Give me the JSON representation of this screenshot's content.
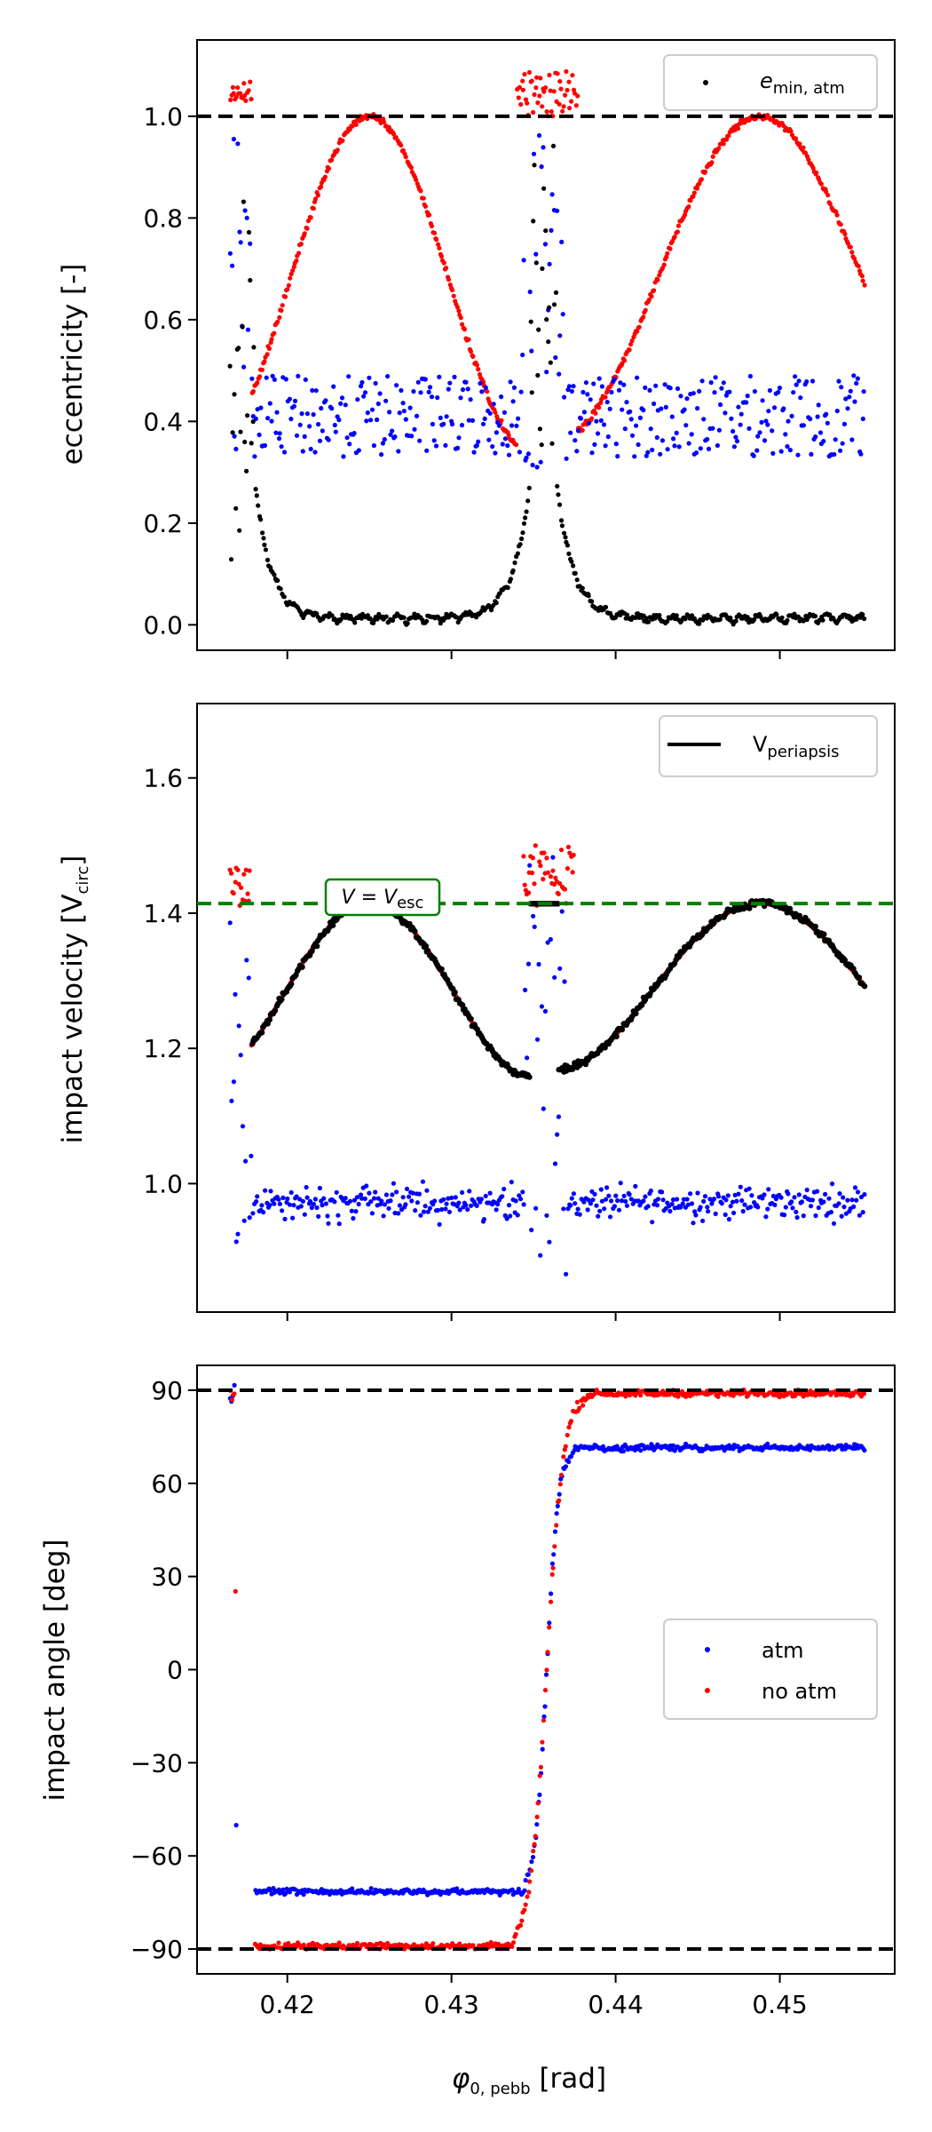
{
  "chart_data": [
    {
      "type": "scatter",
      "panel": "eccentricity",
      "ylabel": "eccentricity [-]",
      "xlim": [
        0.4145,
        0.457
      ],
      "ylim": [
        -0.05,
        1.15
      ],
      "yticks": [
        0.0,
        0.2,
        0.4,
        0.6,
        0.8,
        1.0
      ],
      "ytick_labels": [
        "0.0",
        "0.2",
        "0.4",
        "0.6",
        "0.8",
        "1.0"
      ],
      "xticks": [
        0.42,
        0.43,
        0.44,
        0.45
      ],
      "hlines": [
        {
          "y": 1.0,
          "color": "#000000",
          "style": "dashed"
        }
      ],
      "legend": {
        "position": "top-right",
        "entries": [
          {
            "label": "e",
            "sub": "min, atm",
            "color": "#000000",
            "marker": "dot"
          }
        ]
      },
      "series": [
        {
          "name": "no atm",
          "color": "#ff0000",
          "model": "ecc_noatm",
          "n": 520
        },
        {
          "name": "atm",
          "color": "#0000ff",
          "model": "ecc_atm",
          "n": 420
        },
        {
          "name": "e_min,atm",
          "color": "#000000",
          "model": "ecc_min",
          "n": 480
        }
      ]
    },
    {
      "type": "scatter",
      "panel": "velocity",
      "ylabel": "impact velocity [V",
      "ylabel_sub": "circ",
      "ylabel_end": "]",
      "xlim": [
        0.4145,
        0.457
      ],
      "ylim": [
        0.81,
        1.71
      ],
      "yticks": [
        1.0,
        1.2,
        1.4,
        1.6
      ],
      "ytick_labels": [
        "1.0",
        "1.2",
        "1.4",
        "1.6"
      ],
      "xticks": [
        0.42,
        0.43,
        0.44,
        0.45
      ],
      "hlines": [
        {
          "y": 1.4142,
          "color": "#008000",
          "style": "dashed"
        }
      ],
      "annotation": {
        "text": "V = V",
        "sub": "esc",
        "x": 0.4236,
        "y": 1.4142
      },
      "legend": {
        "position": "top-right",
        "entries": [
          {
            "label": "V",
            "sub": "periapsis",
            "color": "#000000",
            "marker": "line"
          }
        ]
      },
      "series": [
        {
          "name": "no atm",
          "color": "#ff0000",
          "model": "vel_noatm",
          "n": 520
        },
        {
          "name": "V_periapsis",
          "color": "#000000",
          "model": "vel_peri",
          "n": 520
        },
        {
          "name": "atm",
          "color": "#0000ff",
          "model": "vel_atm",
          "n": 420
        }
      ]
    },
    {
      "type": "scatter",
      "panel": "angle",
      "ylabel": "impact angle [deg]",
      "xlabel": "φ",
      "xlabel_sub": "0, pebb",
      "xlabel_end": " [rad]",
      "xlim": [
        0.4145,
        0.457
      ],
      "ylim": [
        -98,
        98
      ],
      "yticks": [
        -90,
        -60,
        -30,
        0,
        30,
        60,
        90
      ],
      "ytick_labels": [
        "−90",
        "−60",
        "−30",
        "0",
        "30",
        "60",
        "90"
      ],
      "xticks": [
        0.42,
        0.43,
        0.44,
        0.45
      ],
      "xtick_labels": [
        "0.42",
        "0.43",
        "0.44",
        "0.45"
      ],
      "hlines": [
        {
          "y": 90,
          "color": "#000000",
          "style": "dashed"
        },
        {
          "y": -90,
          "color": "#000000",
          "style": "dashed"
        }
      ],
      "legend": {
        "position": "center-right",
        "entries": [
          {
            "label": "atm",
            "color": "#0000ff",
            "marker": "dot"
          },
          {
            "label": "no atm",
            "color": "#ff0000",
            "marker": "dot"
          }
        ]
      },
      "series": [
        {
          "name": "atm",
          "color": "#0000ff",
          "model": "ang_atm",
          "n": 460
        },
        {
          "name": "no atm",
          "color": "#ff0000",
          "model": "ang_noatm",
          "n": 460
        }
      ]
    }
  ]
}
